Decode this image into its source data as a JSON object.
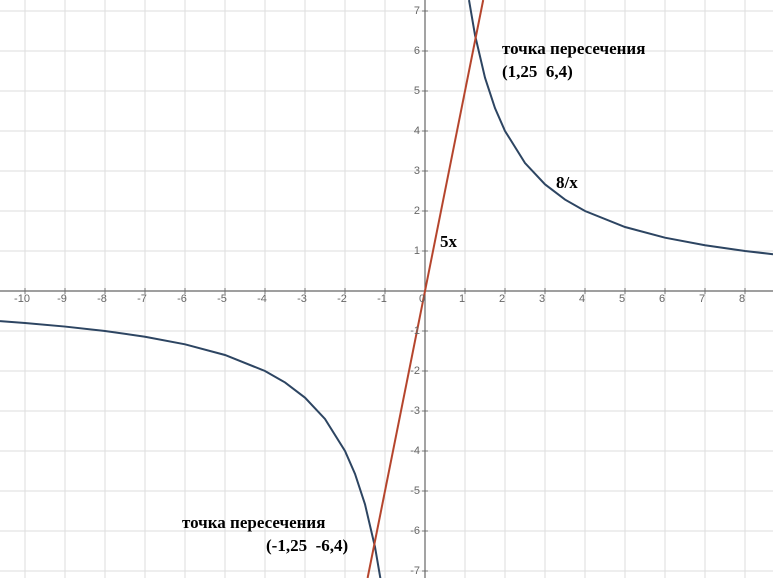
{
  "chart_data": {
    "type": "function-plot",
    "xlim": [
      -10.625,
      8.7
    ],
    "ylim": [
      -7.175,
      7.275
    ],
    "xticks": [
      -10,
      -9,
      -8,
      -7,
      -6,
      -5,
      -4,
      -3,
      -2,
      -1,
      0,
      1,
      2,
      3,
      4,
      5,
      6,
      7,
      8
    ],
    "yticks": [
      -7,
      -6,
      -5,
      -4,
      -3,
      -2,
      -1,
      1,
      2,
      3,
      4,
      5,
      6,
      7
    ],
    "grid": true,
    "series": [
      {
        "name": "8/x",
        "color": "#2d4562",
        "x": [
          -10.625,
          -10,
          -9,
          -8,
          -7,
          -6,
          -5,
          -4,
          -3.5,
          -3,
          -2.5,
          -2,
          -1.75,
          -1.5,
          -1.25,
          -1.1,
          0,
          1.1,
          1.25,
          1.5,
          1.75,
          2,
          2.5,
          3,
          3.5,
          4,
          5,
          6,
          7,
          8,
          8.7
        ],
        "values": [
          -0.753,
          -0.8,
          -0.889,
          -1,
          -1.143,
          -1.333,
          -1.6,
          -2,
          -2.286,
          -2.667,
          -3.2,
          -4,
          -4.571,
          -5.333,
          -6.4,
          -7.273,
          null,
          7.273,
          6.4,
          5.333,
          4.571,
          4,
          3.2,
          2.667,
          2.286,
          2,
          1.6,
          1.333,
          1.143,
          1,
          0.92
        ]
      },
      {
        "name": "5x",
        "color": "#b5452d",
        "x": [
          -1.435,
          1.455
        ],
        "values": [
          -7.175,
          7.275
        ]
      }
    ],
    "annotations": [
      "точка пересечения",
      "(1,25  6,4)",
      "точка пересечения",
      "(-1,25  -6,4)"
    ]
  }
}
